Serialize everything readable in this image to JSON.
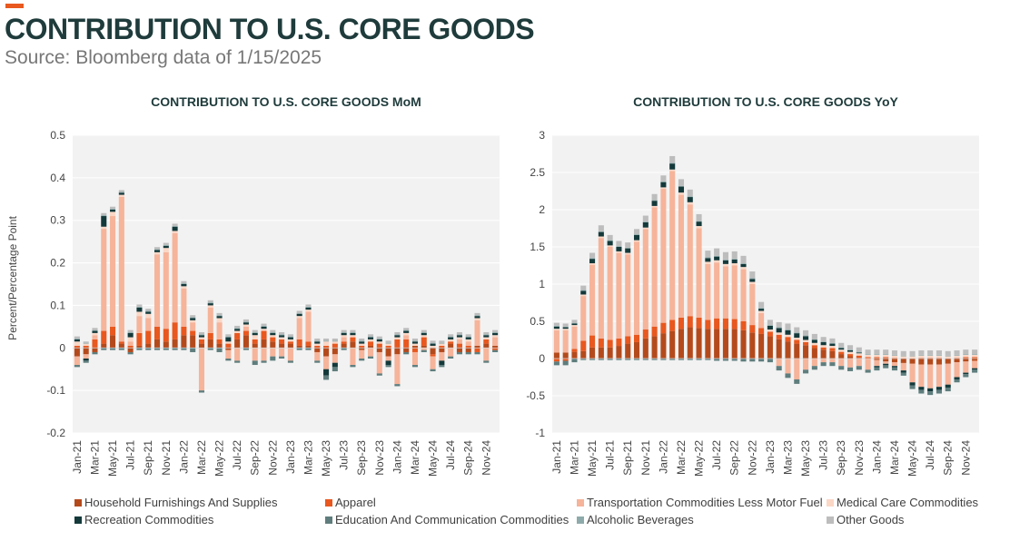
{
  "header": {
    "title": "CONTRIBUTION TO U.S. CORE GOODS",
    "subtitle": "Source: Bloomberg data of 1/15/2025",
    "accent_color": "#e8581f"
  },
  "colors": {
    "Household Furnishings And Supplies": "#b44a1c",
    "Apparel": "#e8581f",
    "Transportation Commodities Less Motor Fuel": "#f6b49a",
    "Medical Care Commodities": "#fbd7c6",
    "Recreation Commodities": "#14393a",
    "Education And Communication Commodities": "#5f7d7d",
    "Alcoholic Beverages": "#8faaaa",
    "Other Goods": "#bdbdbd"
  },
  "legend": [
    "Household Furnishings And Supplies",
    "Apparel",
    "Transportation Commodities Less Motor Fuel",
    "Medical Care Commodities",
    "Recreation Commodities",
    "Education And Communication Commodities",
    "Alcoholic Beverages",
    "Other Goods"
  ],
  "chart_data": [
    {
      "id": "mom",
      "type": "bar",
      "stacked": true,
      "title": "CONTRIBUTION TO U.S. CORE GOODS MoM",
      "ylabel": "Percent/Percentage Point",
      "xlabel": "",
      "ylim": [
        -0.2,
        0.5
      ],
      "yticks": [
        -0.2,
        -0.1,
        0,
        0.1,
        0.2,
        0.3,
        0.4,
        0.5
      ],
      "grid": true,
      "legend_position": "bottom",
      "months_start": "Jan-21",
      "months_count": 48,
      "xtick_labels": [
        "Jan-21",
        "Mar-21",
        "May-21",
        "Jul-21",
        "Sep-21",
        "Nov-21",
        "Jan-22",
        "Mar-22",
        "May-22",
        "Jul-22",
        "Sep-22",
        "Nov-22",
        "Jan-23",
        "Mar-23",
        "May-23",
        "Jul-23",
        "Sep-23",
        "Nov-23",
        "Jan-24",
        "Mar-24",
        "May-24",
        "Jul-24",
        "Sep-24",
        "Nov-24"
      ],
      "series": [
        {
          "name": "Household Furnishings And Supplies",
          "values": [
            -0.02,
            -0.015,
            -0.01,
            0.01,
            0.03,
            0.01,
            -0.01,
            0.005,
            0.01,
            0.02,
            0.015,
            0.02,
            0.03,
            0.03,
            0.01,
            0.02,
            0.01,
            -0.005,
            0.02,
            0.03,
            0.01,
            0.02,
            0.015,
            0.01,
            0.01,
            0.005,
            0.005,
            -0.01,
            -0.02,
            -0.015,
            0.01,
            0.015,
            -0.005,
            0.005,
            -0.01,
            -0.02,
            -0.015,
            -0.01,
            0.005,
            0.005,
            -0.015,
            -0.01,
            0.01,
            -0.01,
            -0.01,
            0.005,
            0.01,
            0.005
          ]
        },
        {
          "name": "Apparel",
          "values": [
            0.005,
            0.005,
            0.02,
            0.03,
            0.02,
            0.005,
            0.005,
            0.03,
            0.03,
            0.03,
            0.03,
            0.04,
            0.02,
            0.01,
            0.01,
            0.015,
            0.01,
            0.01,
            0.015,
            0.01,
            0.01,
            0.02,
            0.01,
            0.01,
            0.005,
            0.015,
            0.01,
            0.005,
            0.005,
            0.01,
            0.005,
            0.01,
            0.005,
            0.01,
            0.01,
            0.005,
            0.02,
            0.02,
            -0.01,
            0.02,
            -0.005,
            0.005,
            0.005,
            0.01,
            0.005,
            -0.01,
            0.01,
            -0.005
          ]
        },
        {
          "name": "Transportation Commodities Less Motor Fuel",
          "values": [
            -0.02,
            -0.01,
            0.01,
            0.24,
            0.26,
            0.34,
            0.01,
            0.04,
            0.03,
            0.17,
            0.18,
            0.21,
            0.09,
            0.02,
            -0.1,
            0.06,
            0.04,
            -0.02,
            -0.03,
            0.01,
            -0.03,
            -0.03,
            -0.02,
            -0.02,
            -0.03,
            0.05,
            0.07,
            -0.02,
            -0.03,
            -0.02,
            0.01,
            -0.04,
            -0.02,
            -0.02,
            -0.05,
            -0.01,
            -0.07,
            0.01,
            -0.03,
            -0.005,
            -0.03,
            -0.02,
            -0.02,
            0.01,
            0.01,
            0.06,
            -0.03,
            0.02
          ]
        },
        {
          "name": "Medical Care Commodities",
          "values": [
            0.01,
            0.005,
            0.005,
            0.005,
            0.01,
            0.005,
            0.01,
            0.01,
            0.01,
            0.005,
            0.01,
            0.005,
            0.005,
            0.005,
            0.005,
            0.005,
            0.01,
            0.005,
            0.005,
            0.005,
            0.01,
            0.005,
            0.005,
            0.005,
            0.005,
            0.005,
            0.005,
            0.005,
            0.01,
            0.005,
            0.005,
            0.005,
            0.005,
            0.005,
            0.005,
            0.005,
            0.005,
            0.005,
            0.005,
            0.005,
            0.005,
            0.005,
            0.005,
            0.005,
            0.005,
            0.005,
            0.005,
            0.005
          ]
        },
        {
          "name": "Recreation Commodities",
          "values": [
            0.005,
            -0.005,
            0.005,
            0.025,
            0.005,
            0.005,
            0.01,
            0.01,
            0.005,
            0.005,
            0.005,
            0.01,
            0.005,
            0.005,
            0.005,
            0.005,
            0.005,
            0.01,
            0.005,
            0.005,
            0.005,
            0.005,
            0.005,
            0.005,
            0.005,
            0.005,
            0.005,
            0.005,
            -0.015,
            -0.01,
            0.005,
            0.005,
            0.005,
            0.005,
            0.005,
            -0.01,
            0.005,
            0.005,
            0.005,
            0.005,
            0.005,
            -0.01,
            0.005,
            0.005,
            0.005,
            0.005,
            0.005,
            0.005
          ]
        },
        {
          "name": "Education And Communication Commodities",
          "values": [
            -0.005,
            -0.005,
            -0.005,
            -0.005,
            -0.005,
            -0.005,
            -0.005,
            -0.005,
            -0.005,
            -0.005,
            -0.005,
            -0.005,
            -0.005,
            -0.01,
            -0.005,
            -0.005,
            -0.01,
            -0.005,
            -0.005,
            -0.005,
            -0.01,
            -0.005,
            -0.01,
            -0.005,
            -0.005,
            -0.005,
            -0.005,
            -0.005,
            -0.01,
            -0.01,
            -0.005,
            -0.005,
            -0.005,
            -0.005,
            -0.005,
            -0.005,
            -0.005,
            -0.005,
            -0.005,
            -0.005,
            -0.005,
            -0.005,
            -0.005,
            -0.005,
            -0.005,
            -0.005,
            -0.005,
            -0.005
          ]
        },
        {
          "name": "Alcoholic Beverages",
          "values": [
            0.002,
            0.002,
            0.002,
            0.002,
            0.002,
            0.002,
            0.002,
            0.002,
            0.002,
            0.002,
            0.002,
            0.002,
            0.002,
            0.002,
            0.002,
            0.002,
            0.002,
            0.002,
            0.002,
            0.002,
            0.002,
            0.002,
            0.002,
            0.002,
            0.002,
            0.002,
            0.002,
            0.002,
            0.002,
            0.002,
            0.002,
            0.002,
            0.002,
            0.002,
            0.002,
            0.002,
            0.002,
            0.002,
            0.002,
            0.002,
            0.002,
            0.002,
            0.002,
            0.002,
            0.002,
            0.002,
            0.002,
            0.002
          ]
        },
        {
          "name": "Other Goods",
          "values": [
            0.005,
            0.003,
            0.005,
            0.005,
            0.005,
            0.004,
            0.005,
            0.005,
            0.005,
            0.005,
            0.005,
            0.005,
            0.005,
            0.005,
            0.005,
            0.005,
            0.005,
            0.005,
            0.005,
            0.005,
            0.005,
            0.005,
            0.005,
            0.005,
            0.005,
            0.005,
            0.005,
            0.005,
            0.005,
            0.005,
            0.005,
            0.005,
            0.005,
            0.005,
            0.005,
            0.005,
            0.005,
            0.005,
            0.005,
            0.005,
            0.005,
            0.005,
            0.005,
            0.005,
            0.005,
            0.005,
            0.005,
            0.005
          ]
        }
      ]
    },
    {
      "id": "yoy",
      "type": "bar",
      "stacked": true,
      "title": "CONTRIBUTION TO U.S. CORE GOODS YoY",
      "ylabel": "",
      "xlabel": "",
      "ylim": [
        -1,
        3
      ],
      "yticks": [
        -1,
        -0.5,
        0,
        0.5,
        1,
        1.5,
        2,
        2.5,
        3
      ],
      "grid": true,
      "legend_position": "bottom",
      "months_start": "Jan-21",
      "months_count": 48,
      "xtick_labels": [
        "Jan-21",
        "Mar-21",
        "May-21",
        "Jul-21",
        "Sep-21",
        "Nov-21",
        "Jan-22",
        "Mar-22",
        "May-22",
        "Jul-22",
        "Sep-22",
        "Nov-22",
        "Jan-23",
        "Mar-23",
        "May-23",
        "Jul-23",
        "Sep-23",
        "Nov-23",
        "Jan-24",
        "Mar-24",
        "May-24",
        "Jul-24",
        "Sep-24",
        "Nov-24"
      ],
      "series": [
        {
          "name": "Household Furnishings And Supplies",
          "values": [
            0.08,
            0.08,
            0.09,
            0.1,
            0.15,
            0.15,
            0.15,
            0.17,
            0.2,
            0.22,
            0.27,
            0.3,
            0.34,
            0.37,
            0.4,
            0.42,
            0.41,
            0.4,
            0.4,
            0.4,
            0.4,
            0.38,
            0.35,
            0.33,
            0.3,
            0.26,
            0.23,
            0.2,
            0.18,
            0.14,
            0.12,
            0.1,
            0.06,
            0.03,
            0.01,
            0.0,
            -0.02,
            -0.04,
            -0.05,
            -0.06,
            -0.07,
            -0.08,
            -0.08,
            -0.08,
            -0.07,
            -0.05,
            -0.04,
            -0.03
          ]
        },
        {
          "name": "Apparel",
          "values": [
            -0.04,
            -0.03,
            0.04,
            0.14,
            0.16,
            0.12,
            0.1,
            0.1,
            0.1,
            0.1,
            0.12,
            0.13,
            0.14,
            0.15,
            0.15,
            0.15,
            0.14,
            0.12,
            0.14,
            0.14,
            0.13,
            0.12,
            0.1,
            0.08,
            0.06,
            0.06,
            0.06,
            0.05,
            0.04,
            0.04,
            0.03,
            0.04,
            0.03,
            0.03,
            0.03,
            0.02,
            0.02,
            0.02,
            0.01,
            0.0,
            0.0,
            0.01,
            0.01,
            0.01,
            0.0,
            0.01,
            0.02,
            0.02
          ]
        },
        {
          "name": "Transportation Commodities Less Motor Fuel",
          "values": [
            0.3,
            0.3,
            0.3,
            0.6,
            0.95,
            1.35,
            1.25,
            1.15,
            1.1,
            1.25,
            1.35,
            1.6,
            1.8,
            2.0,
            1.65,
            1.5,
            1.2,
            0.75,
            0.75,
            0.7,
            0.72,
            0.7,
            0.55,
            0.2,
            0.0,
            -0.1,
            -0.2,
            -0.28,
            -0.15,
            -0.1,
            -0.05,
            -0.05,
            -0.1,
            -0.12,
            -0.1,
            -0.15,
            -0.08,
            -0.03,
            -0.05,
            -0.1,
            -0.25,
            -0.3,
            -0.32,
            -0.3,
            -0.28,
            -0.2,
            -0.15,
            -0.1
          ]
        },
        {
          "name": "Medical Care Commodities",
          "values": [
            0.02,
            0.02,
            0.02,
            0.02,
            0.02,
            0.02,
            0.02,
            0.02,
            0.02,
            0.02,
            0.02,
            0.02,
            0.02,
            0.02,
            0.03,
            0.03,
            0.03,
            0.03,
            0.03,
            0.03,
            0.03,
            0.03,
            0.03,
            0.03,
            0.03,
            0.03,
            0.03,
            0.03,
            0.03,
            0.03,
            0.03,
            0.03,
            0.03,
            0.03,
            0.03,
            0.03,
            0.03,
            0.03,
            0.03,
            0.03,
            0.03,
            0.03,
            0.03,
            0.03,
            0.03,
            0.03,
            0.03,
            0.03
          ]
        },
        {
          "name": "Recreation Commodities",
          "values": [
            0.03,
            0.02,
            0.02,
            0.05,
            0.06,
            0.06,
            0.06,
            0.06,
            0.06,
            0.07,
            0.07,
            0.07,
            0.07,
            0.08,
            0.08,
            0.07,
            0.06,
            0.05,
            0.05,
            0.05,
            0.05,
            0.04,
            0.04,
            0.03,
            0.05,
            0.06,
            0.06,
            0.06,
            0.05,
            0.04,
            0.04,
            0.03,
            0.02,
            0.02,
            0.01,
            0.0,
            -0.02,
            -0.02,
            -0.02,
            -0.03,
            -0.04,
            -0.04,
            -0.04,
            -0.04,
            -0.04,
            -0.03,
            -0.02,
            -0.02
          ]
        },
        {
          "name": "Education And Communication Commodities",
          "values": [
            -0.05,
            -0.06,
            -0.05,
            -0.02,
            -0.02,
            -0.02,
            -0.02,
            -0.02,
            -0.02,
            -0.02,
            -0.02,
            -0.02,
            -0.02,
            -0.02,
            -0.02,
            -0.02,
            -0.02,
            -0.02,
            -0.03,
            -0.03,
            -0.03,
            -0.04,
            -0.04,
            -0.04,
            -0.05,
            -0.06,
            -0.06,
            -0.06,
            -0.05,
            -0.05,
            -0.05,
            -0.05,
            -0.05,
            -0.05,
            -0.05,
            -0.04,
            -0.04,
            -0.04,
            -0.04,
            -0.04,
            -0.05,
            -0.05,
            -0.05,
            -0.05,
            -0.05,
            -0.04,
            -0.04,
            -0.04
          ]
        },
        {
          "name": "Alcoholic Beverages",
          "values": [
            0.01,
            0.01,
            0.01,
            0.01,
            0.01,
            0.01,
            0.01,
            0.01,
            0.01,
            0.01,
            0.01,
            0.01,
            0.01,
            0.01,
            0.01,
            0.01,
            0.01,
            0.01,
            0.01,
            0.01,
            0.01,
            0.01,
            0.01,
            0.01,
            0.01,
            0.01,
            0.01,
            0.01,
            0.01,
            0.01,
            0.01,
            0.01,
            0.01,
            0.01,
            0.01,
            0.01,
            0.01,
            0.01,
            0.01,
            0.01,
            0.01,
            0.01,
            0.01,
            0.01,
            0.01,
            0.01,
            0.01,
            0.01
          ]
        },
        {
          "name": "Other Goods",
          "values": [
            0.04,
            0.04,
            0.04,
            0.06,
            0.07,
            0.08,
            0.07,
            0.07,
            0.07,
            0.07,
            0.08,
            0.08,
            0.08,
            0.09,
            0.09,
            0.09,
            0.09,
            0.09,
            0.1,
            0.1,
            0.1,
            0.1,
            0.09,
            0.08,
            0.07,
            0.07,
            0.08,
            0.07,
            0.07,
            0.07,
            0.06,
            0.06,
            0.06,
            0.06,
            0.06,
            0.06,
            0.06,
            0.06,
            0.06,
            0.06,
            0.06,
            0.06,
            0.06,
            0.06,
            0.06,
            0.06,
            0.06,
            0.06
          ]
        }
      ]
    }
  ]
}
